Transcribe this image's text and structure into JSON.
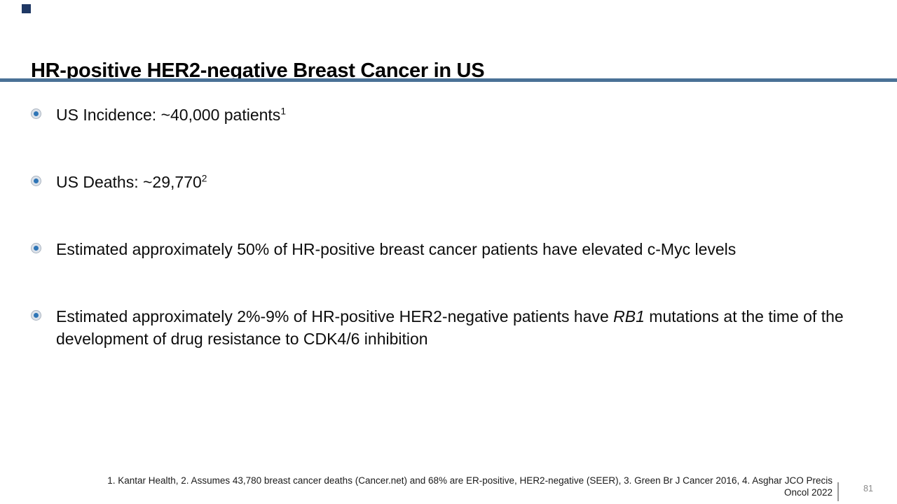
{
  "slide": {
    "title": "HR-positive HER2-negative Breast Cancer in US",
    "accent_rule_color": "#4A7196",
    "corner_square_color": "#1F3864"
  },
  "bullet_icon": {
    "name": "radio-bullet-icon",
    "inner_color": "#2E75B6",
    "ring_color": "#DCE2EA"
  },
  "bullets": [
    {
      "text": "US Incidence: ~40,000 patients",
      "sup": "1"
    },
    {
      "text": "US Deaths: ~29,770",
      "sup": "2"
    },
    {
      "text": "Estimated approximately 50% of HR-positive breast cancer patients have elevated c-Myc levels",
      "sup": ""
    },
    {
      "text_before": "Estimated approximately 2%-9% of HR-positive HER2-negative patients have ",
      "italic": "RB1",
      "text_after": " mutations at the time of the development of drug resistance to CDK4/6 inhibition"
    }
  ],
  "footer": {
    "lines": [
      "1. Kantar Health, 2. Assumes 43,780 breast cancer deaths (Cancer.net) and 68% are ER-positive, HER2-negative (SEER), 3. Green Br J Cancer 2016, 4. Asghar JCO Precis",
      "Oncol 2022"
    ],
    "page_number": "81"
  }
}
